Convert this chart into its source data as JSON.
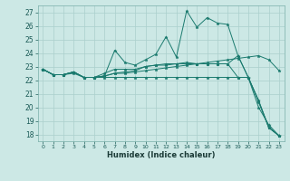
{
  "xlabel": "Humidex (Indice chaleur)",
  "background_color": "#cce8e5",
  "grid_color": "#aacfcc",
  "line_color": "#1a7a6e",
  "xlim": [
    -0.5,
    23.5
  ],
  "ylim": [
    17.5,
    27.5
  ],
  "yticks": [
    18,
    19,
    20,
    21,
    22,
    23,
    24,
    25,
    26,
    27
  ],
  "xticks": [
    0,
    1,
    2,
    3,
    4,
    5,
    6,
    7,
    8,
    9,
    10,
    11,
    12,
    13,
    14,
    15,
    16,
    17,
    18,
    19,
    20,
    21,
    22,
    23
  ],
  "series": [
    [
      22.8,
      22.4,
      22.4,
      22.6,
      22.2,
      22.2,
      22.3,
      24.2,
      23.3,
      23.1,
      23.5,
      23.9,
      25.2,
      23.7,
      27.1,
      25.9,
      26.6,
      26.2,
      26.1,
      23.8,
      22.2,
      20.4,
      18.5,
      17.9
    ],
    [
      22.8,
      22.4,
      22.4,
      22.6,
      22.2,
      22.2,
      22.3,
      22.5,
      22.5,
      22.6,
      22.7,
      22.8,
      22.9,
      23.0,
      23.1,
      23.2,
      23.3,
      23.4,
      23.5,
      23.6,
      23.7,
      23.8,
      23.5,
      22.7
    ],
    [
      22.8,
      22.4,
      22.4,
      22.6,
      22.2,
      22.2,
      22.3,
      22.5,
      22.6,
      22.7,
      23.0,
      23.1,
      23.1,
      23.2,
      23.3,
      23.2,
      23.2,
      23.2,
      23.2,
      22.2,
      22.2,
      20.5,
      18.5,
      17.9
    ],
    [
      22.8,
      22.4,
      22.4,
      22.6,
      22.2,
      22.2,
      22.5,
      22.8,
      22.8,
      22.8,
      23.0,
      23.1,
      23.2,
      23.2,
      23.2,
      23.2,
      23.2,
      23.2,
      23.2,
      23.8,
      22.2,
      20.5,
      18.5,
      17.9
    ],
    [
      22.8,
      22.4,
      22.4,
      22.5,
      22.2,
      22.2,
      22.2,
      22.2,
      22.2,
      22.2,
      22.2,
      22.2,
      22.2,
      22.2,
      22.2,
      22.2,
      22.2,
      22.2,
      22.2,
      22.2,
      22.2,
      20.0,
      18.7,
      17.9
    ]
  ]
}
